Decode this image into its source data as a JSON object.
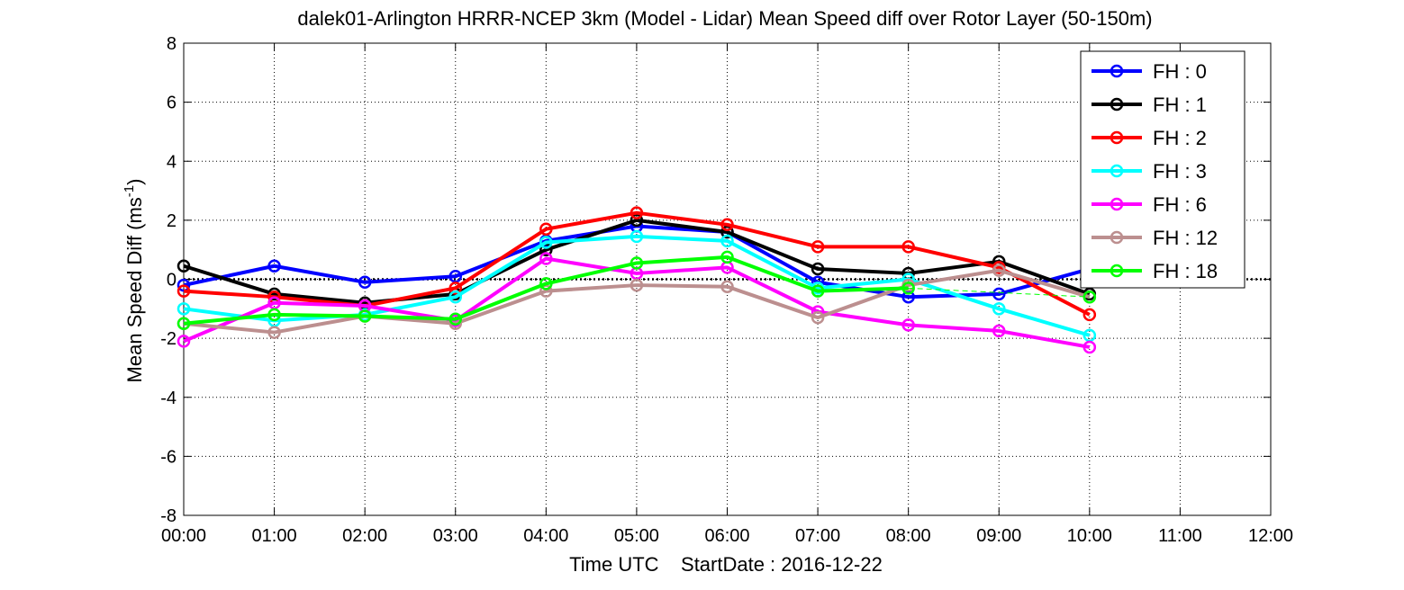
{
  "chart_data": {
    "type": "line",
    "title": "dalek01-Arlington HRRR-NCEP 3km (Model - Lidar) Mean Speed diff over Rotor Layer (50-150m)",
    "xlabel": "Time UTC    StartDate : 2016-12-22",
    "ylabel_main": "Mean Speed Diff (ms",
    "ylabel_sup": "-1",
    "ylabel_end": ")",
    "x_tick_labels": [
      "00:00",
      "01:00",
      "02:00",
      "03:00",
      "04:00",
      "05:00",
      "06:00",
      "07:00",
      "08:00",
      "09:00",
      "10:00",
      "11:00",
      "12:00"
    ],
    "y_tick_labels": [
      "8",
      "6",
      "4",
      "2",
      "0",
      "-2",
      "-4",
      "-6",
      "-8"
    ],
    "xlim": [
      0,
      12
    ],
    "ylim": [
      -8,
      8
    ],
    "grid": true,
    "legend_position": "top-right",
    "zero_line": true,
    "x": [
      0,
      1,
      2,
      3,
      4,
      5,
      6,
      7,
      8,
      9,
      10
    ],
    "series": [
      {
        "name": "FH : 0",
        "color": "#0000ff",
        "values": [
          -0.2,
          0.45,
          -0.1,
          0.1,
          1.3,
          1.8,
          1.6,
          -0.1,
          -0.6,
          -0.5,
          0.35
        ]
      },
      {
        "name": "FH : 1",
        "color": "#000000",
        "values": [
          0.45,
          -0.5,
          -0.8,
          -0.5,
          1.0,
          2.0,
          1.6,
          0.35,
          0.2,
          0.6,
          -0.5
        ]
      },
      {
        "name": "FH : 2",
        "color": "#ff0000",
        "values": [
          -0.4,
          -0.6,
          -0.9,
          -0.3,
          1.7,
          2.25,
          1.85,
          1.1,
          1.1,
          0.4,
          -1.2
        ]
      },
      {
        "name": "FH : 3",
        "color": "#00ffff",
        "values": [
          -1.0,
          -1.4,
          -1.2,
          -0.6,
          1.25,
          1.45,
          1.3,
          -0.3,
          0.0,
          -1.0,
          -1.9
        ]
      },
      {
        "name": "FH : 6",
        "color": "#ff00ff",
        "values": [
          -2.1,
          -0.8,
          -0.9,
          -1.4,
          0.7,
          0.2,
          0.4,
          -1.1,
          -1.55,
          -1.75,
          -2.3
        ]
      },
      {
        "name": "FH : 12",
        "color": "#bc8f8f",
        "values": [
          -1.5,
          -1.8,
          -1.25,
          -1.5,
          -0.4,
          -0.2,
          -0.25,
          -1.3,
          -0.2,
          0.3,
          -0.6
        ]
      },
      {
        "name": "FH : 18",
        "color": "#00ff00",
        "values": [
          -1.5,
          -1.2,
          -1.25,
          -1.35,
          -0.15,
          0.55,
          0.75,
          -0.4,
          -0.3,
          null,
          -0.6
        ]
      }
    ]
  }
}
